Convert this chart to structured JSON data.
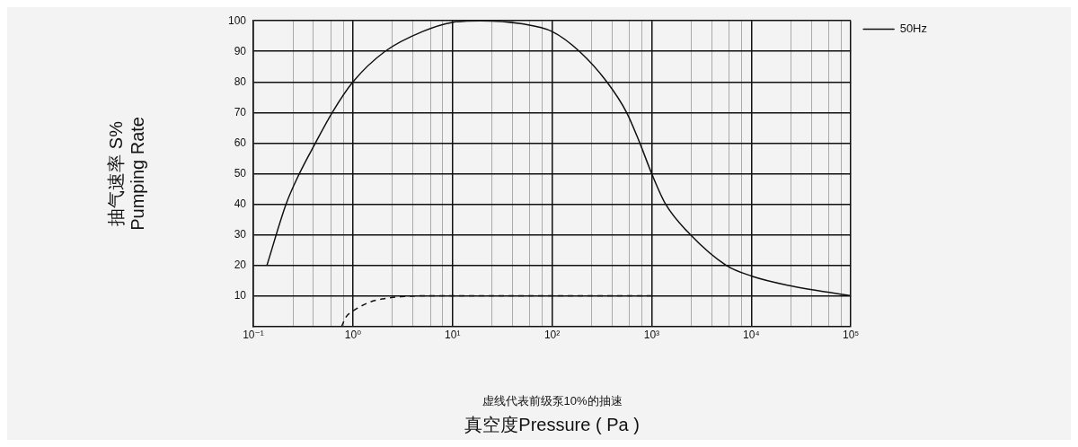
{
  "chart_data": {
    "type": "line",
    "xlabel": "真空度Pressure ( Pa )",
    "ylabel": "抽气速率 S%\nPumping Rate",
    "annotations": [
      "虚线代表前级泵10%的抽速"
    ],
    "log": "x",
    "grid": true,
    "legend": "right",
    "xlim": [
      0.1,
      100000
    ],
    "ylim": [
      0,
      100
    ],
    "xticks": [
      {
        "value": 0.1,
        "label": "10⁻¹"
      },
      {
        "value": 0.25,
        "label": null
      },
      {
        "value": 0.4,
        "label": null
      },
      {
        "value": 0.6,
        "label": null
      },
      {
        "value": 0.8,
        "label": null
      },
      {
        "value": 1,
        "label": "10⁰"
      },
      {
        "value": 2.5,
        "label": null
      },
      {
        "value": 4,
        "label": null
      },
      {
        "value": 6,
        "label": null
      },
      {
        "value": 8,
        "label": null
      },
      {
        "value": 10,
        "label": "10¹"
      },
      {
        "value": 25,
        "label": null
      },
      {
        "value": 40,
        "label": null
      },
      {
        "value": 60,
        "label": null
      },
      {
        "value": 80,
        "label": null
      },
      {
        "value": 100,
        "label": "10²"
      },
      {
        "value": 250,
        "label": null
      },
      {
        "value": 400,
        "label": null
      },
      {
        "value": 600,
        "label": null
      },
      {
        "value": 800,
        "label": null
      },
      {
        "value": 1000,
        "label": "10³"
      },
      {
        "value": 2500,
        "label": null
      },
      {
        "value": 4000,
        "label": null
      },
      {
        "value": 6000,
        "label": null
      },
      {
        "value": 8000,
        "label": null
      },
      {
        "value": 10000,
        "label": "10⁴"
      },
      {
        "value": 25000,
        "label": null
      },
      {
        "value": 40000,
        "label": null
      },
      {
        "value": 60000,
        "label": null
      },
      {
        "value": 80000,
        "label": null
      },
      {
        "value": 100000,
        "label": "10⁵"
      }
    ],
    "yticks": [
      10,
      20,
      30,
      40,
      50,
      60,
      70,
      80,
      90,
      100
    ],
    "series": [
      {
        "name": "50Hz",
        "color": "#111111",
        "line_style": "solid",
        "x": [
          0.137,
          0.213,
          0.29,
          0.42,
          0.62,
          1,
          2.1,
          5,
          10,
          19,
          50,
          100,
          188,
          355,
          560,
          760,
          1000,
          1380,
          2450,
          5600,
          10000,
          23000,
          100000
        ],
        "values": [
          20,
          40,
          50,
          60,
          70,
          80,
          90,
          96.5,
          99.5,
          100,
          99,
          96.5,
          90,
          80,
          70,
          60,
          50,
          40,
          30,
          20,
          16.5,
          13.5,
          10
        ]
      },
      {
        "color": "#111111",
        "line_style": "dashed",
        "x": [
          0.77,
          0.85,
          1,
          1.5,
          2,
          3,
          5,
          10,
          100,
          1000
        ],
        "values": [
          0,
          3,
          5,
          8,
          9,
          9.7,
          10,
          10,
          10,
          10
        ]
      }
    ]
  }
}
